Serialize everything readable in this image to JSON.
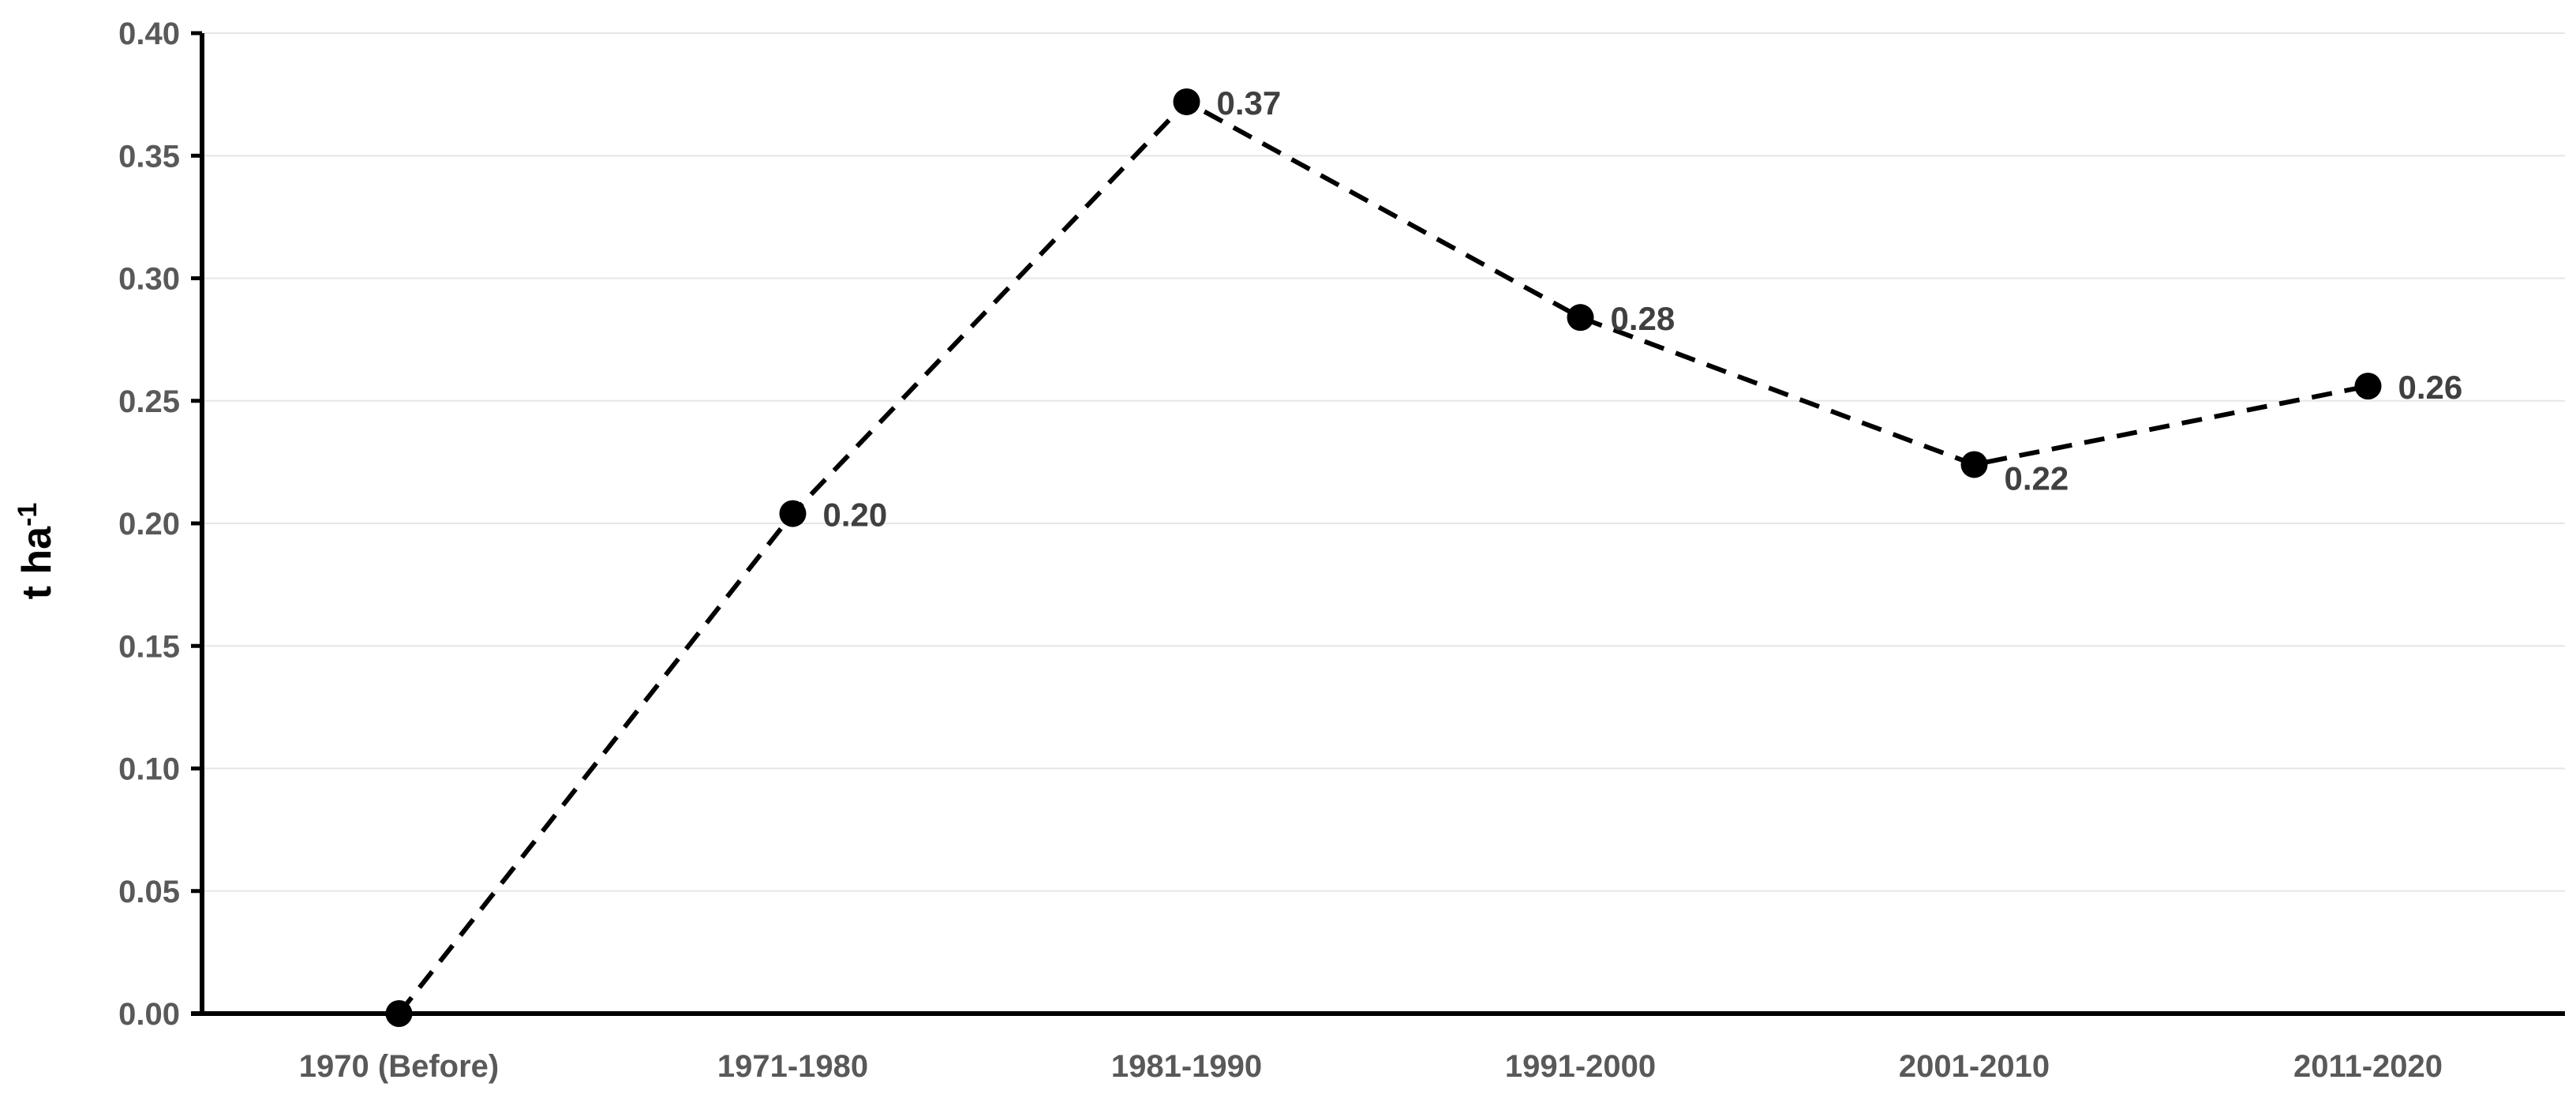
{
  "chart_data": {
    "type": "line",
    "title": "",
    "xlabel": "",
    "ylabel": "t ha",
    "ylabel_superscript": "-1",
    "categories": [
      "1970 (Before)",
      "1971-1980",
      "1981-1990",
      "1991-2000",
      "2001-2010",
      "2011-2020"
    ],
    "series": [
      {
        "values": [
          0.0,
          0.204,
          0.372,
          0.284,
          0.224,
          0.256
        ],
        "data_labels": [
          "",
          "0.20",
          "0.37",
          "0.28",
          "0.22",
          "0.26"
        ],
        "line_style": "dashed",
        "color": "#000000",
        "marker": "circle"
      }
    ],
    "ylim": [
      0,
      0.4
    ],
    "yticks": [
      "0.00",
      "0.05",
      "0.10",
      "0.15",
      "0.20",
      "0.25",
      "0.30",
      "0.35",
      "0.40"
    ],
    "grid": "horizontal",
    "legend": "none",
    "colors": {
      "gridline": "#e6e6e6",
      "axis": "#000000",
      "tick_label": "#595959",
      "data_label": "#404040"
    }
  }
}
